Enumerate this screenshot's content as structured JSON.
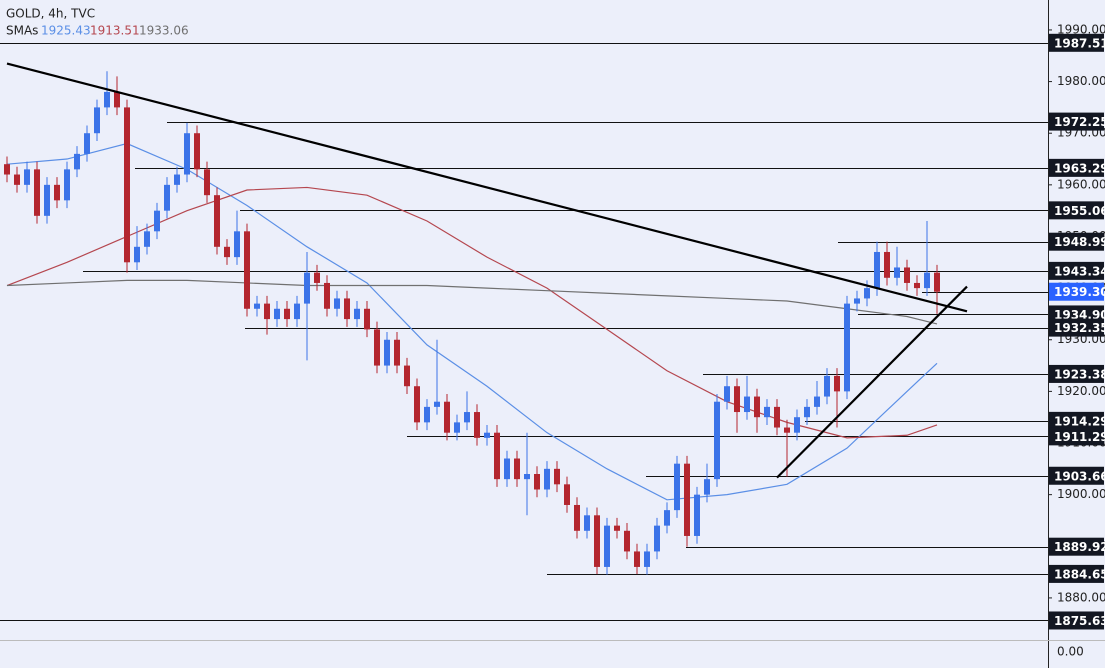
{
  "chart_data": {
    "type": "candlestick",
    "title": "GOLD, 4h, TVC",
    "sma_label": "SMAs",
    "up_color": "#3b73e8",
    "down_color": "#b3262f",
    "open": [
      1964,
      1962,
      1960,
      1963,
      1954,
      1960,
      1957,
      1963,
      1966,
      1970,
      1975,
      1978,
      1975,
      1945,
      1948,
      1951,
      1955,
      1960,
      1962,
      1970,
      1963,
      1958,
      1948,
      1946,
      1951,
      1936,
      1937,
      1934,
      1936,
      1934,
      1937,
      1943,
      1941,
      1936,
      1938,
      1934,
      1936,
      1932,
      1925,
      1930,
      1925,
      1921,
      1914,
      1917,
      1918,
      1912,
      1914,
      1916,
      1911,
      1912,
      1903,
      1907,
      1903,
      1904,
      1901,
      1905,
      1902,
      1898,
      1893,
      1896,
      1886,
      1894,
      1893,
      1889,
      1886,
      1889,
      1894,
      1897,
      1906,
      1892,
      1900,
      1903,
      1918,
      1921,
      1916,
      1919,
      1915,
      1917,
      1913,
      1912,
      1915,
      1917,
      1919,
      1923,
      1920,
      1937,
      1938,
      1940,
      1947,
      1942,
      1944,
      1941,
      1940,
      1943
    ],
    "high": [
      1965.5,
      1963.5,
      1964.5,
      1964.5,
      1961.5,
      1961.5,
      1964.5,
      1967.5,
      1971.5,
      1976.5,
      1982,
      1981,
      1976.5,
      1952,
      1952.5,
      1956.5,
      1961.5,
      1963.5,
      1972,
      1971.5,
      1964.5,
      1959.5,
      1949.5,
      1955,
      1952.5,
      1938.5,
      1938.5,
      1937.5,
      1937.5,
      1938.5,
      1947,
      1944.5,
      1942.5,
      1939.5,
      1939.5,
      1937.5,
      1937.5,
      1933.5,
      1931.5,
      1931.5,
      1926.5,
      1922.5,
      1918.5,
      1930,
      1919.5,
      1915.5,
      1920,
      1917.5,
      1913.5,
      1913.5,
      1908.5,
      1908.5,
      1912,
      1905.5,
      1906.5,
      1906.5,
      1903.5,
      1899.5,
      1897.5,
      1897.5,
      1895.5,
      1895.5,
      1894.5,
      1890.5,
      1890.5,
      1895.5,
      1898.5,
      1907.5,
      1907.5,
      1901.5,
      1906,
      1919.5,
      1923,
      1922.5,
      1923,
      1920.5,
      1918.5,
      1918.5,
      1914.5,
      1916.5,
      1918.5,
      1922,
      1924.5,
      1924.5,
      1938.5,
      1939.5,
      1941.5,
      1949,
      1949,
      1948,
      1945.5,
      1942.5,
      1953,
      1944.5
    ],
    "low": [
      1960.5,
      1958.5,
      1958.5,
      1952.5,
      1952.5,
      1955.5,
      1955.5,
      1961.5,
      1964.5,
      1968.5,
      1973.5,
      1973.5,
      1943,
      1943.5,
      1946.5,
      1949.5,
      1953.5,
      1958.5,
      1960.5,
      1961.5,
      1956.5,
      1946.5,
      1944.5,
      1944.5,
      1934.5,
      1934.5,
      1931,
      1932.5,
      1932.5,
      1932.5,
      1926,
      1939.5,
      1934.5,
      1934.5,
      1932.5,
      1932.5,
      1930.5,
      1923.5,
      1923.5,
      1923.5,
      1919.5,
      1912.5,
      1912.5,
      1915.5,
      1910.5,
      1910.5,
      1912.5,
      1909.5,
      1909.5,
      1901.5,
      1901.5,
      1901.5,
      1896,
      1899.5,
      1899.5,
      1900.5,
      1896.5,
      1891.5,
      1891.5,
      1884.6,
      1884.5,
      1891.5,
      1887.5,
      1884.6,
      1884.5,
      1887.5,
      1892.5,
      1895.5,
      1889.9,
      1890.5,
      1898.5,
      1901.5,
      1916.5,
      1912,
      1914.5,
      1912,
      1913.5,
      1911.5,
      1903.5,
      1910.5,
      1913.5,
      1915.5,
      1917.5,
      1913,
      1918.5,
      1935.5,
      1936.5,
      1938.5,
      1940.5,
      1940.5,
      1939.5,
      1938.5,
      1938.5,
      1935
    ],
    "close": [
      1962,
      1960,
      1963,
      1954,
      1960,
      1957,
      1963,
      1966,
      1970,
      1975,
      1978,
      1975,
      1945,
      1948,
      1951,
      1955,
      1960,
      1962,
      1970,
      1963,
      1958,
      1948,
      1946,
      1951,
      1936,
      1937,
      1934,
      1936,
      1934,
      1937,
      1943,
      1941,
      1936,
      1938,
      1934,
      1936,
      1932,
      1925,
      1930,
      1925,
      1921,
      1914,
      1917,
      1918,
      1912,
      1914,
      1916,
      1911,
      1912,
      1903,
      1907,
      1903,
      1904,
      1901,
      1905,
      1902,
      1898,
      1893,
      1896,
      1886,
      1894,
      1893,
      1889,
      1886,
      1889,
      1894,
      1897,
      1906,
      1892,
      1900,
      1903,
      1918,
      1921,
      1916,
      1919,
      1915,
      1917,
      1913,
      1912,
      1915,
      1917,
      1919,
      1923,
      1920,
      1937,
      1938,
      1940,
      1947,
      1942,
      1944,
      1941,
      1940,
      1943,
      1939.3
    ],
    "sma_x": [
      0,
      6,
      12,
      18,
      24,
      30,
      36,
      42,
      48,
      54,
      60,
      66,
      72,
      78,
      84,
      90,
      93
    ],
    "smas": [
      {
        "color": "#5b8fe6",
        "values": [
          1964,
          1965,
          1968,
          1963,
          1956,
          1948,
          1941,
          1929,
          1921,
          1912,
          1905,
          1899,
          1900,
          1902,
          1909,
          1920,
          1925.43
        ]
      },
      {
        "color": "#b5474f",
        "values": [
          1940.5,
          1945,
          1950,
          1955,
          1959,
          1959.5,
          1958,
          1953,
          1946,
          1940,
          1932,
          1924,
          1918,
          1914,
          1911,
          1911.5,
          1913.51
        ]
      },
      {
        "color": "#707070",
        "values": [
          1940.5,
          1941,
          1941.5,
          1941.5,
          1941,
          1940.5,
          1940.5,
          1940.5,
          1940,
          1939.5,
          1939,
          1938.5,
          1938,
          1937.5,
          1936,
          1934.5,
          1933.06
        ]
      }
    ],
    "levels": [
      1987.51,
      1972.25,
      1963.29,
      1955.06,
      1948.99,
      1943.34,
      {
        "value": 1934.9,
        "label": "1934.90"
      },
      1932.35,
      1923.38,
      1914.29,
      1911.29,
      1903.66,
      1889.92,
      1884.65,
      1875.63
    ],
    "current_price": {
      "value": 1939.3,
      "label": "1939.30"
    },
    "trendlines": [
      [
        [
          0,
          1983.5
        ],
        [
          96,
          1935.5
        ]
      ],
      [
        [
          77,
          1903.3
        ],
        [
          96,
          1940.3
        ]
      ]
    ],
    "ylim": [
      1871.85,
      1995.8
    ],
    "yticks": [
      {
        "value": 1990,
        "label": "1990.00"
      },
      {
        "value": 1980,
        "label": "1980.00"
      },
      {
        "value": 1970,
        "label": "1970.00"
      },
      {
        "value": 1960,
        "label": "1960.00"
      },
      {
        "value": 1950,
        "label": "1950.00"
      },
      {
        "value": 1940,
        "label": "1940.00"
      },
      {
        "value": 1930,
        "label": "1930.00"
      },
      {
        "value": 1920,
        "label": "1920.00"
      },
      {
        "value": 1910,
        "label": "1910.00"
      },
      {
        "value": 1900,
        "label": "1900.00"
      },
      {
        "value": 1890,
        "label": "1890.00"
      },
      {
        "value": 1880,
        "label": "1880.00"
      }
    ],
    "lower_pane_tick": {
      "value": 0,
      "label": "0.00"
    }
  }
}
